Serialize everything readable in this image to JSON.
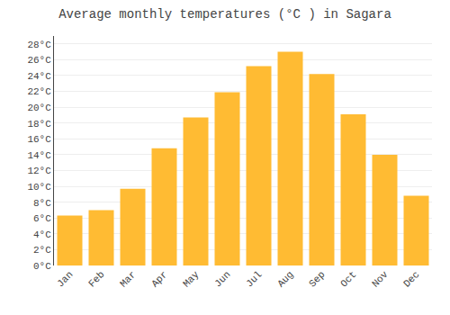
{
  "chart_data": {
    "type": "bar",
    "title": "Average monthly temperatures (°C ) in Sagara",
    "categories": [
      "Jan",
      "Feb",
      "Mar",
      "Apr",
      "May",
      "Jun",
      "Jul",
      "Aug",
      "Sep",
      "Oct",
      "Nov",
      "Dec"
    ],
    "values": [
      6.3,
      7.0,
      9.7,
      14.8,
      18.7,
      21.9,
      25.2,
      27.0,
      24.2,
      19.1,
      14.0,
      8.8
    ],
    "color": "#FFBB33",
    "ylim": [
      0,
      29
    ],
    "yticks": [
      {
        "value": 0,
        "label": "0°C"
      },
      {
        "value": 2,
        "label": "2°C"
      },
      {
        "value": 4,
        "label": "4°C"
      },
      {
        "value": 6,
        "label": "6°C"
      },
      {
        "value": 8,
        "label": "8°C"
      },
      {
        "value": 10,
        "label": "10°C"
      },
      {
        "value": 12,
        "label": "12°C"
      },
      {
        "value": 14,
        "label": "14°C"
      },
      {
        "value": 16,
        "label": "16°C"
      },
      {
        "value": 18,
        "label": "18°C"
      },
      {
        "value": 20,
        "label": "20°C"
      },
      {
        "value": 22,
        "label": "22°C"
      },
      {
        "value": 24,
        "label": "24°C"
      },
      {
        "value": 26,
        "label": "26°C"
      },
      {
        "value": 28,
        "label": "28°C"
      }
    ],
    "grid": true
  }
}
